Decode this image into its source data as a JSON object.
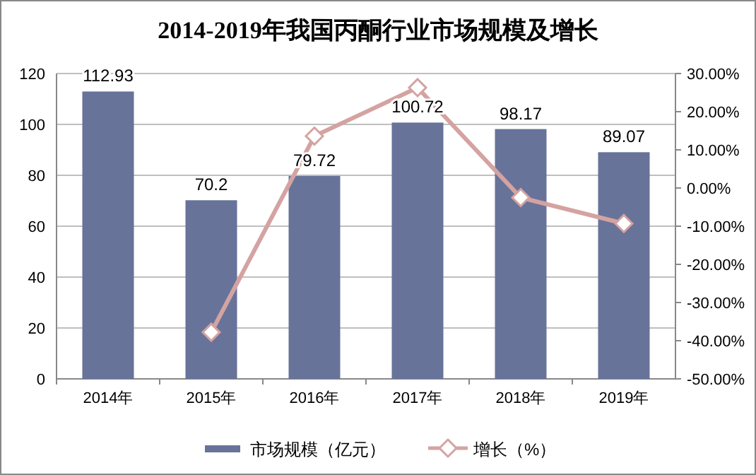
{
  "chart_data": {
    "type": "bar",
    "title": "2014-2019年我国丙酮行业市场规模及增长",
    "categories": [
      "2014年",
      "2015年",
      "2016年",
      "2017年",
      "2018年",
      "2019年"
    ],
    "series": [
      {
        "name": "市场规模（亿元）",
        "color": "#68739a",
        "values": [
          112.93,
          70.2,
          79.72,
          100.72,
          98.17,
          89.07
        ],
        "data_labels": true
      },
      {
        "name": "增长（%）",
        "type": "line",
        "axis": "y2",
        "color": "#d4a3a1",
        "values": [
          null,
          -37.8,
          13.6,
          26.3,
          -2.5,
          -9.3
        ],
        "marker": "diamond"
      }
    ],
    "ylim": [
      0,
      120
    ],
    "yticks": [
      0,
      20,
      40,
      60,
      80,
      100,
      120
    ],
    "y2lim": [
      -50,
      30
    ],
    "y2ticks": [
      {
        "value": -50,
        "label": "-50.00%"
      },
      {
        "value": -40,
        "label": "-40.00%"
      },
      {
        "value": -30,
        "label": "-30.00%"
      },
      {
        "value": -20,
        "label": "-20.00%"
      },
      {
        "value": -10,
        "label": "-10.00%"
      },
      {
        "value": 0,
        "label": "0.00%"
      },
      {
        "value": 10,
        "label": "10.00%"
      },
      {
        "value": 20,
        "label": "20.00%"
      },
      {
        "value": 30,
        "label": "30.00%"
      }
    ],
    "grid": "y",
    "legend": "bottom"
  }
}
